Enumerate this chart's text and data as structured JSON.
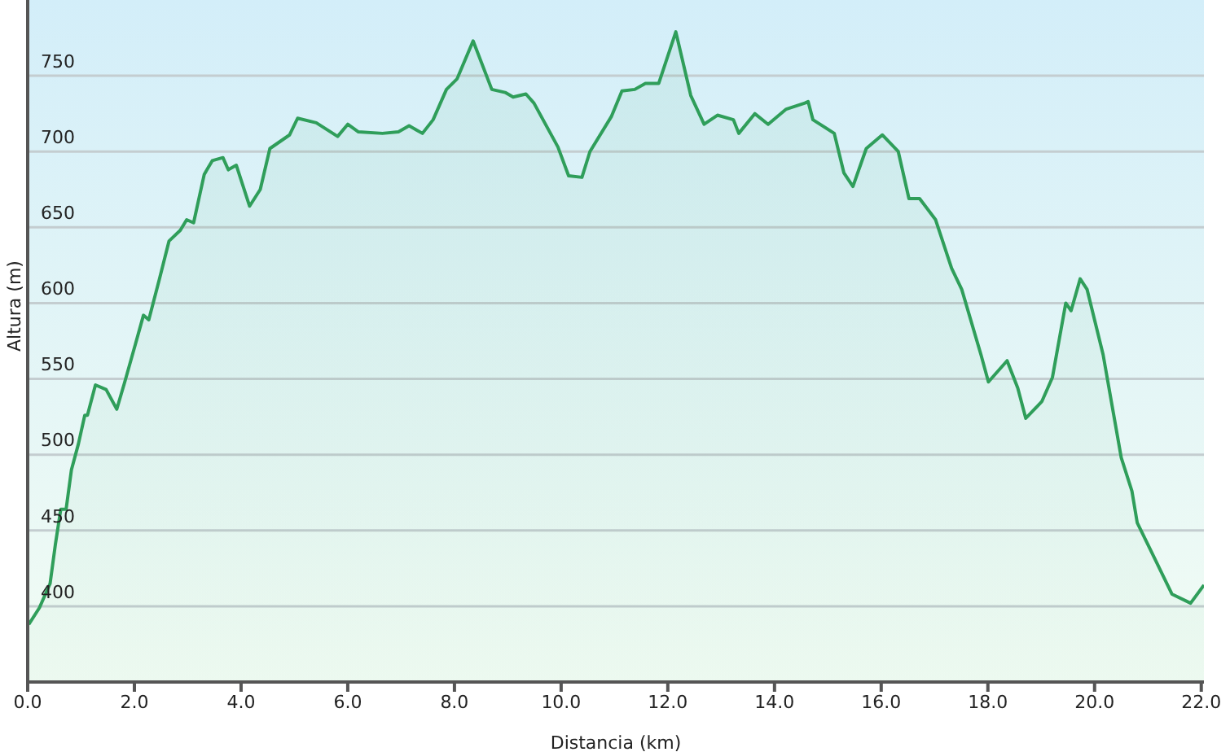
{
  "chart_data": {
    "type": "area",
    "xlabel": "Distancia (km)",
    "ylabel": "Altura (m)",
    "xlim": [
      0,
      22.05
    ],
    "ylim": [
      350,
      800
    ],
    "xticks": [
      {
        "value": 0,
        "label": "0.0"
      },
      {
        "value": 2,
        "label": "2.0"
      },
      {
        "value": 4,
        "label": "4.0"
      },
      {
        "value": 6,
        "label": "6.0"
      },
      {
        "value": 8,
        "label": "8.0"
      },
      {
        "value": 10,
        "label": "10.0"
      },
      {
        "value": 12,
        "label": "12.0"
      },
      {
        "value": 14,
        "label": "14.0"
      },
      {
        "value": 16,
        "label": "16.0"
      },
      {
        "value": 18,
        "label": "18.0"
      },
      {
        "value": 20,
        "label": "20.0"
      },
      {
        "value": 22,
        "label": "22.0"
      }
    ],
    "yticks": [
      400,
      450,
      500,
      550,
      600,
      650,
      700,
      750
    ],
    "grid": "y",
    "legend": false,
    "marker": "none",
    "series": [
      {
        "color": "#2f9e5a",
        "x": [
          0.02,
          0.22,
          0.42,
          0.52,
          0.62,
          0.72,
          0.82,
          0.95,
          1.07,
          1.12,
          1.27,
          1.47,
          1.67,
          1.82,
          2.02,
          2.17,
          2.27,
          2.47,
          2.65,
          2.86,
          2.98,
          3.11,
          3.31,
          3.46,
          3.66,
          3.76,
          3.91,
          4.16,
          4.36,
          4.54,
          4.91,
          5.06,
          5.41,
          5.81,
          6.0,
          6.2,
          6.65,
          6.95,
          7.15,
          7.4,
          7.6,
          7.85,
          8.05,
          8.35,
          8.7,
          8.95,
          9.1,
          9.34,
          9.49,
          9.94,
          10.14,
          10.39,
          10.54,
          10.94,
          11.14,
          11.38,
          11.58,
          11.83,
          12.15,
          12.43,
          12.68,
          12.93,
          13.23,
          13.33,
          13.63,
          13.88,
          14.22,
          14.57,
          14.63,
          14.72,
          15.12,
          15.3,
          15.47,
          15.72,
          16.02,
          16.32,
          16.52,
          16.72,
          17.02,
          17.32,
          17.51,
          17.87,
          18.01,
          18.36,
          18.56,
          18.71,
          19.01,
          19.21,
          19.46,
          19.56,
          19.73,
          19.86,
          20.16,
          20.5,
          20.7,
          20.8,
          21.05,
          21.45,
          21.8,
          22.05
        ],
        "values": [
          388,
          399,
          415,
          441,
          464,
          464,
          490,
          507,
          526,
          526,
          546,
          543,
          530,
          548,
          573,
          592,
          589,
          616,
          641,
          648,
          655,
          653,
          685,
          694,
          696,
          688,
          691,
          664,
          675,
          702,
          711,
          722,
          719,
          710,
          718,
          713,
          712,
          713,
          717,
          712,
          721,
          741,
          748,
          773,
          741,
          739,
          736,
          738,
          732,
          703,
          684,
          683,
          700,
          723,
          740,
          741,
          745,
          745,
          779,
          737,
          718,
          724,
          721,
          712,
          725,
          718,
          728,
          732,
          733,
          721,
          712,
          686,
          677,
          702,
          711,
          700,
          669,
          669,
          655,
          623,
          609,
          566,
          548,
          562,
          544,
          524,
          535,
          551,
          600,
          595,
          616,
          609,
          566,
          498,
          476,
          455,
          437,
          408,
          402,
          414
        ]
      }
    ]
  }
}
